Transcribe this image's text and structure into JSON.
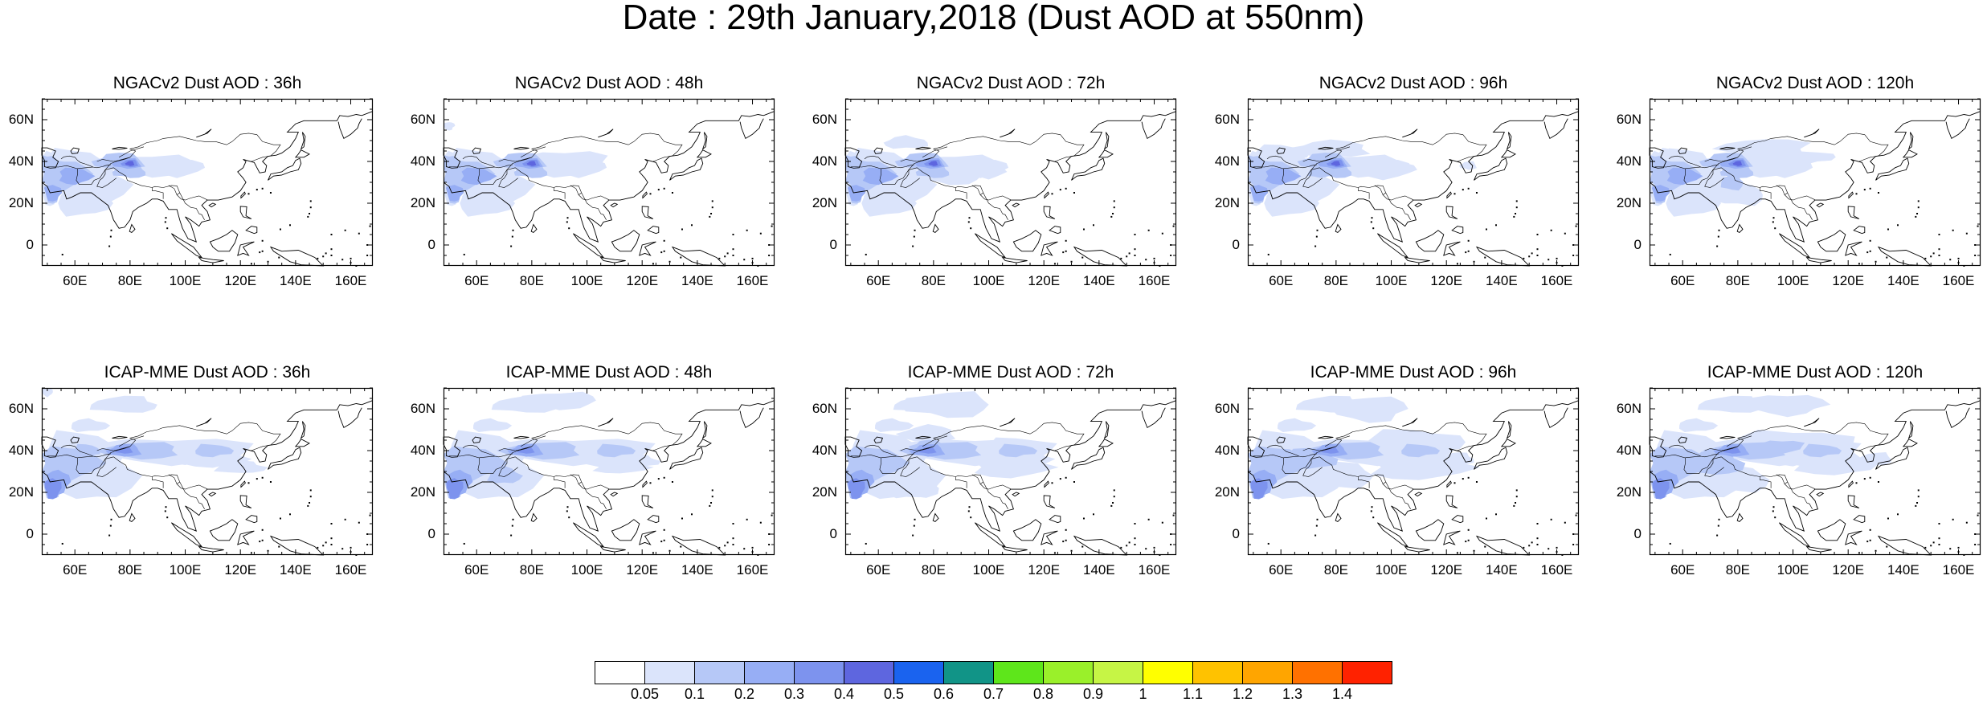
{
  "page_title": "Date : 29th January,2018 (Dust AOD at 550nm)",
  "panels": [
    {
      "title": "NGACv2 Dust AOD : 36h",
      "model": "NGACv2",
      "lead": "36h"
    },
    {
      "title": "NGACv2 Dust AOD : 48h",
      "model": "NGACv2",
      "lead": "48h"
    },
    {
      "title": "NGACv2 Dust AOD : 72h",
      "model": "NGACv2",
      "lead": "72h"
    },
    {
      "title": "NGACv2 Dust AOD : 96h",
      "model": "NGACv2",
      "lead": "96h"
    },
    {
      "title": "NGACv2 Dust AOD : 120h",
      "model": "NGACv2",
      "lead": "120h"
    },
    {
      "title": "ICAP-MME Dust AOD : 36h",
      "model": "ICAP-MME",
      "lead": "36h"
    },
    {
      "title": "ICAP-MME Dust AOD : 48h",
      "model": "ICAP-MME",
      "lead": "48h"
    },
    {
      "title": "ICAP-MME Dust AOD : 72h",
      "model": "ICAP-MME",
      "lead": "72h"
    },
    {
      "title": "ICAP-MME Dust AOD : 96h",
      "model": "ICAP-MME",
      "lead": "96h"
    },
    {
      "title": "ICAP-MME Dust AOD : 120h",
      "model": "ICAP-MME",
      "lead": "120h"
    }
  ],
  "axes": {
    "lon_ticks": [
      "60E",
      "80E",
      "100E",
      "120E",
      "140E",
      "160E"
    ],
    "lon_values": [
      60,
      80,
      100,
      120,
      140,
      160
    ],
    "lat_ticks": [
      "60N",
      "40N",
      "20N",
      "0"
    ],
    "lat_values": [
      60,
      40,
      20,
      0
    ],
    "lon_range": [
      48,
      168
    ],
    "lat_range": [
      -10,
      70
    ]
  },
  "colorbar": {
    "labels": [
      "0.05",
      "0.1",
      "0.2",
      "0.3",
      "0.4",
      "0.5",
      "0.6",
      "0.7",
      "0.8",
      "0.9",
      "1",
      "1.1",
      "1.2",
      "1.3",
      "1.4"
    ],
    "colors": [
      "#ffffff",
      "#dbe4fb",
      "#b6c8f7",
      "#97aef5",
      "#7d93ee",
      "#5e66df",
      "#1a63ef",
      "#119487",
      "#5ee61b",
      "#9af02a",
      "#c6f545",
      "#ffff00",
      "#ffc200",
      "#ffa500",
      "#ff7100",
      "#ff2200"
    ]
  }
}
